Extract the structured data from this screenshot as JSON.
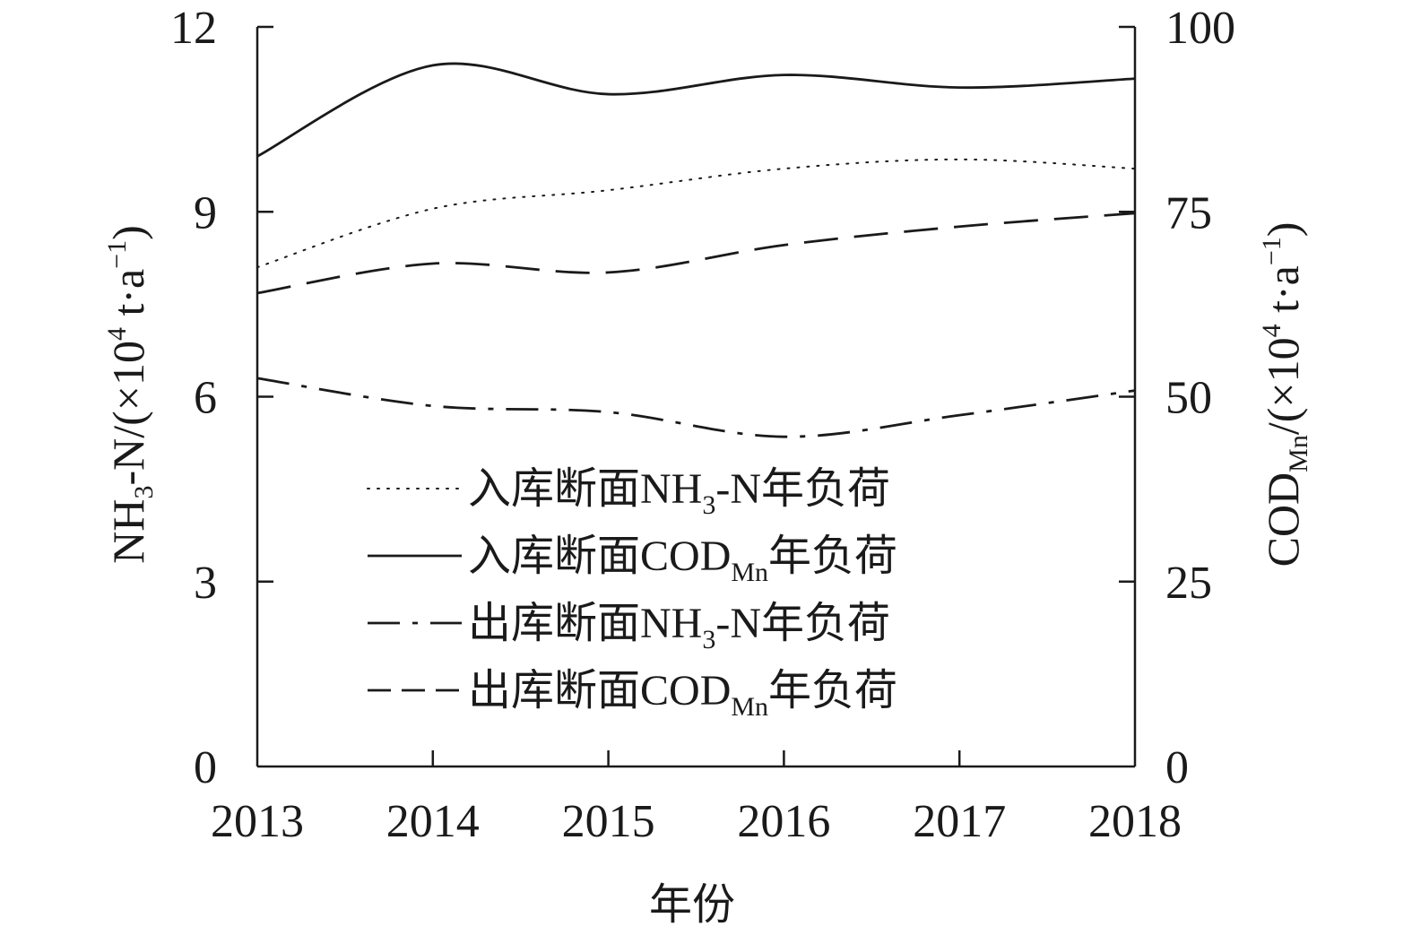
{
  "chart_data": {
    "type": "line",
    "x": [
      2013,
      2014,
      2015,
      2016,
      2017,
      2018
    ],
    "xlabel": "年份",
    "x_ticks": [
      "2013",
      "2014",
      "2015",
      "2016",
      "2017",
      "2018"
    ],
    "left_axis": {
      "label_chem": "NH",
      "label_chem_sub": "3",
      "label_unit": "-N/(×10",
      "label_unit_sup": "4",
      "label_unit_tail": " t·a",
      "label_unit_tail_sup": "−1",
      "label_unit_end": ")",
      "ylim": [
        0,
        12
      ],
      "ticks": [
        "0",
        "3",
        "6",
        "9",
        "12"
      ]
    },
    "right_axis": {
      "label_chem": "COD",
      "label_chem_sub": "Mn",
      "label_unit": "/(×10",
      "label_unit_sup": "4",
      "label_unit_tail": " t·a",
      "label_unit_tail_sup": "−1",
      "label_unit_end": ")",
      "ylim": [
        0,
        100
      ],
      "ticks": [
        "0",
        "25",
        "50",
        "75",
        "100"
      ]
    },
    "series": [
      {
        "legend_prefix": "入库断面",
        "legend_chem": "NH",
        "legend_sub": "3",
        "legend_chem_tail": "-N",
        "legend_suffix": "年负荷",
        "axis": "left",
        "style": "dotted",
        "values": [
          8.1,
          9.05,
          9.35,
          9.7,
          9.85,
          9.7
        ]
      },
      {
        "legend_prefix": "入库断面",
        "legend_chem": "COD",
        "legend_sub": "Mn",
        "legend_chem_tail": "",
        "legend_suffix": "年负荷",
        "axis": "right",
        "style": "solid",
        "values": [
          82.5,
          94.8,
          90.9,
          93.5,
          91.8,
          93.0
        ]
      },
      {
        "legend_prefix": "出库断面",
        "legend_chem": "NH",
        "legend_sub": "3",
        "legend_chem_tail": "-N",
        "legend_suffix": "年负荷",
        "axis": "left",
        "style": "dashdot",
        "values": [
          6.3,
          5.85,
          5.75,
          5.35,
          5.7,
          6.1
        ]
      },
      {
        "legend_prefix": "出库断面",
        "legend_chem": "COD",
        "legend_sub": "Mn",
        "legend_chem_tail": "",
        "legend_suffix": "年负荷",
        "axis": "right",
        "style": "dashed",
        "values": [
          64.0,
          68.0,
          66.8,
          70.5,
          73.0,
          74.8
        ]
      }
    ],
    "grid": false,
    "legend_placement": "center-left inside plot"
  }
}
